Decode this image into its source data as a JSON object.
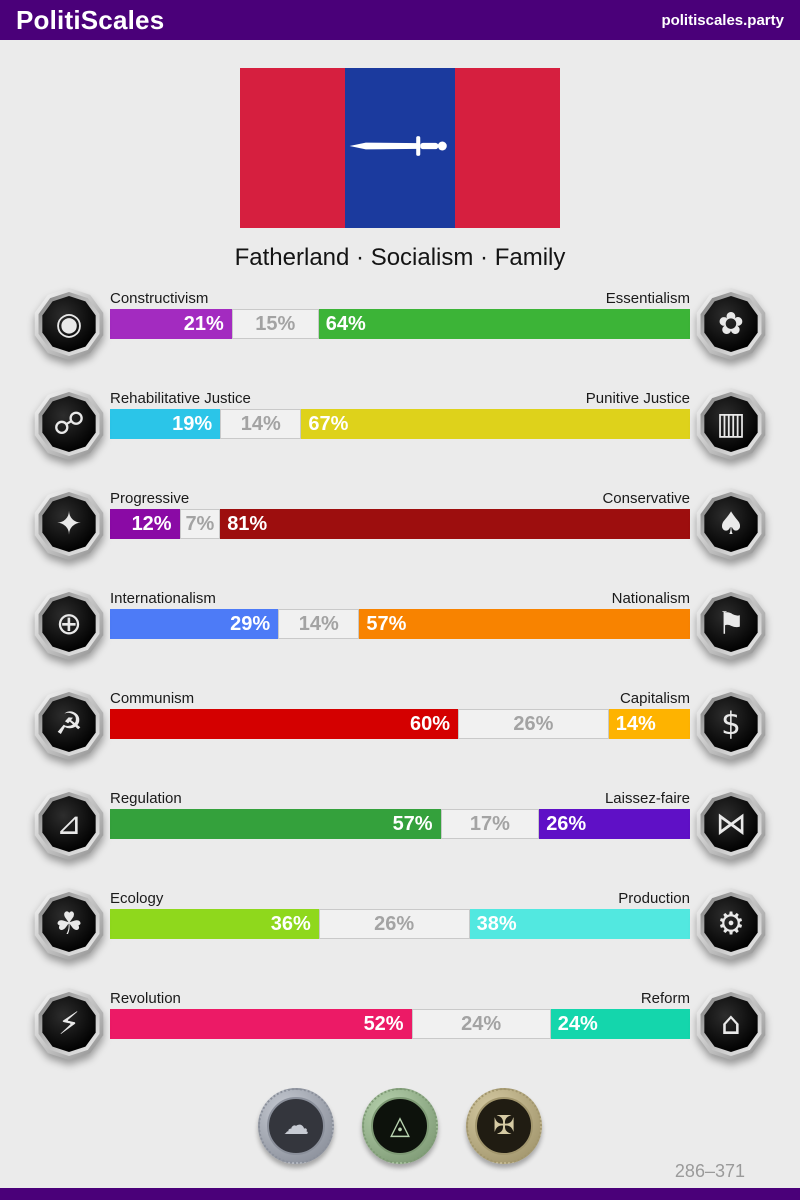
{
  "header": {
    "title": "PolitiScales",
    "site": "politiscales.party",
    "bg_color": "#4a0079"
  },
  "flag": {
    "red_color": "#d61f3f",
    "blue_color": "#1b3a9e",
    "caption": "Fatherland · Socialism · Family"
  },
  "axes": [
    {
      "left_label": "Constructivism",
      "right_label": "Essentialism",
      "left_value": 21,
      "neutral_value": 15,
      "right_value": 64,
      "left_color": "#a32bc0",
      "right_color": "#3cb437",
      "left_icon": "sphere-frame-icon",
      "right_icon": "dandelion-icon",
      "left_glyph": "◉",
      "right_glyph": "✿"
    },
    {
      "left_label": "Rehabilitative Justice",
      "right_label": "Punitive Justice",
      "left_value": 19,
      "neutral_value": 14,
      "right_value": 67,
      "left_color": "#2bc5e8",
      "right_color": "#ded21b",
      "left_icon": "handshake-icon",
      "right_icon": "prison-bars-icon",
      "left_glyph": "☍",
      "right_glyph": "▥"
    },
    {
      "left_label": "Progressive",
      "right_label": "Conservative",
      "left_value": 12,
      "neutral_value": 7,
      "right_value": 81,
      "left_color": "#8a0aa5",
      "right_color": "#9d0e0e",
      "left_icon": "comet-icon",
      "right_icon": "suit-tie-icon",
      "left_glyph": "✦",
      "right_glyph": "♠"
    },
    {
      "left_label": "Internationalism",
      "right_label": "Nationalism",
      "left_value": 29,
      "neutral_value": 14,
      "right_value": 57,
      "left_color": "#4d7bf7",
      "right_color": "#f88300",
      "left_icon": "globe-laurel-icon",
      "right_icon": "flag-icon",
      "left_glyph": "⊕",
      "right_glyph": "⚑"
    },
    {
      "left_label": "Communism",
      "right_label": "Capitalism",
      "left_value": 60,
      "neutral_value": 26,
      "right_value": 14,
      "left_color": "#d40000",
      "right_color": "#feb300",
      "left_icon": "hammer-sickle-icon",
      "right_icon": "money-bag-icon",
      "left_glyph": "☭",
      "right_glyph": "$"
    },
    {
      "left_label": "Regulation",
      "right_label": "Laissez-faire",
      "left_value": 57,
      "neutral_value": 17,
      "right_value": 26,
      "left_color": "#34a13c",
      "right_color": "#5f10c6",
      "left_icon": "ruler-square-icon",
      "right_icon": "butterfly-icon",
      "left_glyph": "⊿",
      "right_glyph": "⋈"
    },
    {
      "left_label": "Ecology",
      "right_label": "Production",
      "left_value": 36,
      "neutral_value": 26,
      "right_value": 38,
      "left_color": "#8fd81c",
      "right_color": "#52e8e0",
      "left_icon": "plant-icon",
      "right_icon": "gears-icon",
      "left_glyph": "☘",
      "right_glyph": "⚙"
    },
    {
      "left_label": "Revolution",
      "right_label": "Reform",
      "left_value": 52,
      "neutral_value": 24,
      "right_value": 24,
      "left_color": "#ec1a66",
      "right_color": "#14d6ac",
      "left_icon": "petrel-bird-icon",
      "right_icon": "sailboat-landscape-icon",
      "left_glyph": "⚡",
      "right_glyph": "⌂"
    }
  ],
  "neutral_style": {
    "bg": "#f1f1f1",
    "border": "#c9c9c9",
    "text_color": "#a3a3a3"
  },
  "coins": [
    {
      "icon": "brain-coin-icon",
      "ring": "#c7cbd3",
      "ring_dark": "#8b909b",
      "face": "#34363d",
      "glyph": "☁",
      "glyph_color": "#c7cbd3"
    },
    {
      "icon": "eye-triangle-coin-icon",
      "ring": "#b9d4b0",
      "ring_dark": "#7e9a75",
      "face": "#0d120c",
      "glyph": "◬",
      "glyph_color": "#b9d4b0"
    },
    {
      "icon": "cross-orbit-coin-icon",
      "ring": "#d6cba4",
      "ring_dark": "#a2966d",
      "face": "#201c12",
      "glyph": "✠",
      "glyph_color": "#d6cba4"
    }
  ],
  "footer": {
    "range": "286–371"
  }
}
